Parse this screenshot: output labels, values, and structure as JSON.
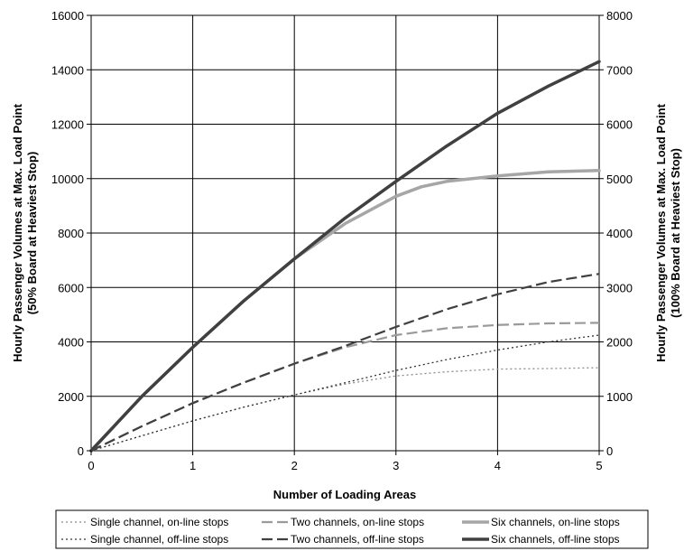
{
  "chart_data": {
    "type": "line",
    "title": "",
    "xlabel": "Number of Loading Areas",
    "ylabel_left": [
      "Hourly Passenger Volumes at Max. Load Point",
      "(50% Board at Heaviest Stop)"
    ],
    "ylabel_right": [
      "Hourly Passenger Volumes at Max. Load Point",
      "(100% Board at Heaviest Stop)"
    ],
    "xlim": [
      0,
      5
    ],
    "ylim_left": [
      0,
      16000
    ],
    "ylim_right": [
      0,
      8000
    ],
    "x_ticks": [
      "0",
      "1",
      "2",
      "3",
      "4",
      "5"
    ],
    "y_ticks_left": [
      "0",
      "2000",
      "4000",
      "6000",
      "8000",
      "10000",
      "12000",
      "14000",
      "16000"
    ],
    "y_ticks_right": [
      "0",
      "1000",
      "2000",
      "3000",
      "4000",
      "5000",
      "6000",
      "7000",
      "8000"
    ],
    "grid": true,
    "legend_position": "bottom",
    "series": [
      {
        "name": "Single channel, on-line stops",
        "color": "#8c8c8c",
        "style": "dotted",
        "x": [
          0,
          0.5,
          1,
          1.5,
          2,
          2.5,
          3,
          3.5,
          4,
          4.5,
          5
        ],
        "values": [
          0,
          550,
          1100,
          1600,
          2050,
          2450,
          2750,
          2900,
          3000,
          3020,
          3050
        ]
      },
      {
        "name": "Two channels, on-line stops",
        "color": "#9a9a9a",
        "style": "dashed",
        "x": [
          0,
          0.5,
          1,
          1.5,
          2,
          2.5,
          3,
          3.5,
          4,
          4.5,
          5
        ],
        "values": [
          0,
          900,
          1750,
          2500,
          3200,
          3800,
          4250,
          4500,
          4620,
          4680,
          4700
        ]
      },
      {
        "name": "Six channels, on-line stops",
        "color": "#a6a6a6",
        "style": "solid",
        "x": [
          0,
          0.5,
          1,
          1.5,
          2,
          2.5,
          3,
          3.25,
          3.5,
          4,
          4.5,
          5
        ],
        "values": [
          0,
          2000,
          3800,
          5500,
          7050,
          8350,
          9350,
          9700,
          9900,
          10100,
          10250,
          10300
        ]
      },
      {
        "name": "Single channel, off-line stops",
        "color": "#333333",
        "style": "dotted",
        "x": [
          0,
          0.5,
          1,
          1.5,
          2,
          2.5,
          3,
          3.5,
          4,
          4.5,
          5
        ],
        "values": [
          0,
          550,
          1100,
          1600,
          2050,
          2500,
          2950,
          3350,
          3700,
          4000,
          4250
        ]
      },
      {
        "name": "Two channels, off-line stops",
        "color": "#404040",
        "style": "dashed",
        "x": [
          0,
          0.5,
          1,
          1.5,
          2,
          2.5,
          3,
          3.5,
          4,
          4.5,
          5
        ],
        "values": [
          0,
          900,
          1750,
          2500,
          3200,
          3850,
          4550,
          5200,
          5750,
          6200,
          6500
        ]
      },
      {
        "name": "Six channels, off-line stops",
        "color": "#404040",
        "style": "solid",
        "x": [
          0,
          0.5,
          1,
          1.5,
          2,
          2.5,
          3,
          3.5,
          4,
          4.5,
          5
        ],
        "values": [
          0,
          2000,
          3800,
          5500,
          7050,
          8550,
          9900,
          11200,
          12400,
          13400,
          14300
        ]
      }
    ],
    "legend_rows": [
      [
        "Single channel, on-line stops",
        "Two channels, on-line stops",
        "Six channels, on-line stops"
      ],
      [
        "Single channel, off-line stops",
        "Two channels, off-line stops",
        "Six channels, off-line stops"
      ]
    ]
  }
}
